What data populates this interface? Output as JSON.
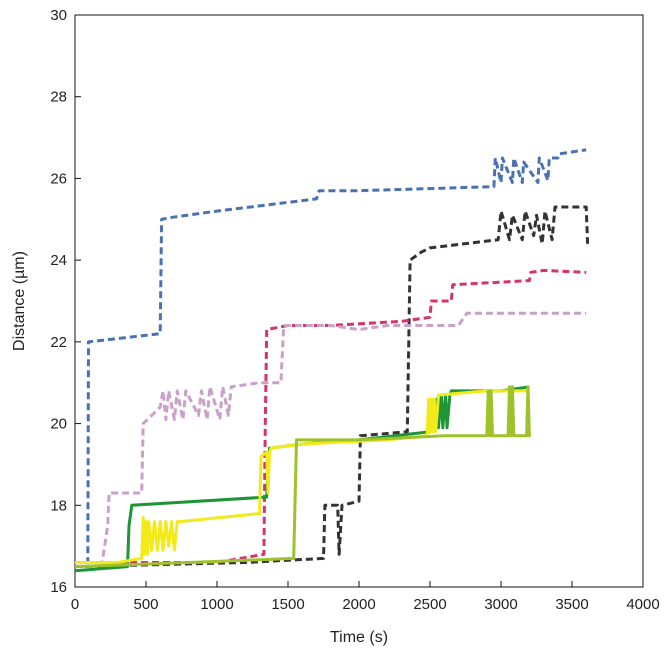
{
  "chart_data": {
    "type": "line",
    "title": "",
    "xlabel": "Time (s)",
    "ylabel": "Distance (µm)",
    "xlim": [
      0,
      4000
    ],
    "ylim": [
      16,
      30
    ],
    "xticks": [
      0,
      500,
      1000,
      1500,
      2000,
      2500,
      3000,
      3500,
      4000
    ],
    "yticks": [
      16,
      18,
      20,
      22,
      24,
      26,
      28,
      30
    ],
    "grid": false,
    "legend": "none",
    "series": [
      {
        "color": "#4a72b0",
        "style": "dashed",
        "x": [
          0,
          90,
          95,
          600,
          610,
          690,
          1000,
          1700,
          1720,
          2000,
          2500,
          2950,
          2960,
          3000,
          3010,
          3080,
          3090,
          3150,
          3160,
          3260,
          3270,
          3330,
          3340,
          3400,
          3410,
          3600
        ],
        "y": [
          16.6,
          16.6,
          22.0,
          22.2,
          25.0,
          25.05,
          25.2,
          25.5,
          25.7,
          25.7,
          25.75,
          25.8,
          26.5,
          25.9,
          26.5,
          25.9,
          26.5,
          25.9,
          26.4,
          25.9,
          26.5,
          25.95,
          26.5,
          26.5,
          26.6,
          26.7
        ]
      },
      {
        "color": "#333333",
        "style": "dashed",
        "x": [
          0,
          1200,
          1750,
          1760,
          1850,
          1860,
          1880,
          2000,
          2010,
          2340,
          2360,
          2440,
          2500,
          2980,
          3000,
          3060,
          3080,
          3150,
          3170,
          3230,
          3250,
          3290,
          3310,
          3360,
          3380,
          3600,
          3610
        ],
        "y": [
          16.5,
          16.6,
          16.7,
          18.0,
          18.0,
          16.8,
          18.0,
          18.1,
          19.7,
          19.8,
          24.0,
          24.2,
          24.3,
          24.5,
          25.2,
          24.5,
          25.1,
          24.5,
          25.2,
          24.6,
          25.1,
          24.4,
          25.2,
          24.5,
          25.3,
          25.3,
          24.4
        ]
      },
      {
        "color": "#d6336c",
        "style": "dashed",
        "x": [
          0,
          1000,
          1330,
          1340,
          1350,
          1500,
          1800,
          2290,
          2300,
          2500,
          2510,
          2650,
          2660,
          3200,
          3210,
          3300,
          3600
        ],
        "y": [
          16.6,
          16.6,
          16.8,
          20.0,
          22.3,
          22.4,
          22.4,
          22.5,
          22.5,
          22.6,
          23.0,
          23.0,
          23.4,
          23.5,
          23.7,
          23.75,
          23.7
        ]
      },
      {
        "color": "#c8a0c8",
        "style": "dashed",
        "x": [
          0,
          190,
          200,
          230,
          240,
          470,
          480,
          600,
          620,
          640,
          660,
          700,
          720,
          760,
          780,
          870,
          890,
          930,
          950,
          1020,
          1040,
          1080,
          1100,
          1300,
          1310,
          1450,
          1470,
          1800,
          2000,
          2200,
          2300,
          2700,
          2760,
          2780,
          3200,
          3600
        ],
        "y": [
          16.6,
          16.6,
          16.8,
          17.5,
          18.3,
          18.3,
          20.0,
          20.4,
          20.8,
          20.1,
          20.8,
          20.1,
          20.8,
          20.1,
          20.8,
          20.2,
          20.8,
          20.1,
          20.9,
          20.1,
          20.9,
          20.2,
          20.9,
          21.0,
          21.0,
          21.0,
          22.4,
          22.4,
          22.3,
          22.4,
          22.4,
          22.4,
          22.7,
          22.7,
          22.7,
          22.7
        ]
      },
      {
        "color": "#1e9636",
        "style": "solid",
        "x": [
          0,
          370,
          380,
          400,
          1350,
          1370,
          1380,
          1600,
          2000,
          2500,
          2550,
          2560,
          2580,
          2590,
          2610,
          2620,
          2640,
          2650,
          2700,
          2950,
          3000,
          3200
        ],
        "y": [
          16.4,
          16.5,
          17.5,
          18.0,
          18.2,
          19.4,
          19.4,
          19.5,
          19.6,
          19.8,
          20.6,
          19.9,
          20.7,
          19.9,
          20.7,
          19.9,
          20.7,
          20.8,
          20.8,
          20.8,
          20.8,
          20.9
        ]
      },
      {
        "color": "#f2ea1a",
        "style": "solid",
        "x": [
          0,
          300,
          470,
          480,
          490,
          500,
          510,
          520,
          540,
          560,
          580,
          600,
          620,
          640,
          660,
          680,
          700,
          720,
          740,
          1300,
          1310,
          1350,
          1360,
          1370,
          1380,
          1600,
          2200,
          2480,
          2490,
          2500,
          2510,
          2520,
          2530,
          2540,
          2560,
          2900,
          3200
        ],
        "y": [
          16.6,
          16.6,
          16.7,
          17.7,
          16.8,
          17.6,
          16.8,
          17.6,
          16.9,
          17.6,
          16.9,
          17.6,
          16.9,
          17.6,
          17.0,
          17.6,
          16.9,
          17.6,
          17.6,
          17.8,
          19.2,
          19.3,
          18.3,
          19.3,
          19.4,
          19.5,
          19.6,
          19.7,
          20.6,
          19.8,
          20.6,
          19.8,
          20.6,
          19.8,
          20.7,
          20.8,
          20.8
        ]
      },
      {
        "color": "#9dc22a",
        "style": "solid",
        "x": [
          0,
          800,
          1540,
          1560,
          1570,
          2000,
          2600,
          2700,
          2900,
          2910,
          2920,
          2930,
          2940,
          2950,
          3050,
          3060,
          3070,
          3080,
          3090,
          3180,
          3190,
          3200,
          3210
        ],
        "y": [
          16.5,
          16.6,
          16.7,
          19.6,
          19.6,
          19.6,
          19.7,
          19.7,
          19.7,
          20.8,
          19.7,
          20.8,
          19.7,
          19.7,
          19.7,
          20.9,
          19.7,
          20.9,
          19.7,
          19.7,
          20.9,
          19.7,
          19.7
        ]
      }
    ]
  }
}
